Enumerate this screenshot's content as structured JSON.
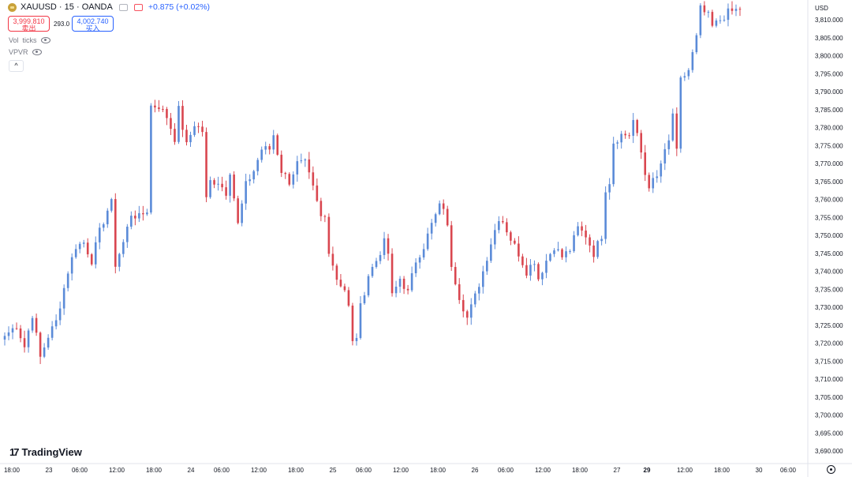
{
  "header": {
    "symbol": "XAUUSD",
    "sep1": "·",
    "interval": "15",
    "sep2": "·",
    "broker": "OANDA",
    "change": "+0.875 (+0.02%)",
    "sell_price": "3,999.810",
    "sell_label": "卖出",
    "spread": "293.0",
    "buy_price": "4,002.740",
    "buy_label": "买入"
  },
  "indicators": [
    {
      "name": "Vol",
      "param": "ticks"
    },
    {
      "name": "VPVR",
      "param": ""
    }
  ],
  "collapse_glyph": "^",
  "logo_text": "TradingView",
  "logo_mark": "17",
  "settings_icon": "gear-icon",
  "colors": {
    "up": "#5b8bd8",
    "down": "#d9464f",
    "up_faint": "#b8c8ee",
    "down_faint": "#efb4ba"
  },
  "chart_data": {
    "type": "candlestick",
    "currency": "USD",
    "y_ticks": [
      "3,810.000",
      "3,805.000",
      "3,800.000",
      "3,795.000",
      "3,790.000",
      "3,785.000",
      "3,780.000",
      "3,775.000",
      "3,770.000",
      "3,765.000",
      "3,760.000",
      "3,755.000",
      "3,750.000",
      "3,745.000",
      "3,740.000",
      "3,735.000",
      "3,730.000",
      "3,725.000",
      "3,720.000",
      "3,715.000",
      "3,710.000",
      "3,705.000",
      "3,700.000",
      "3,695.000",
      "3,690.000"
    ],
    "ylim": [
      3687,
      3813.5
    ],
    "x_ticks": [
      {
        "label": "18:00",
        "bold": false
      },
      {
        "label": "23",
        "bold": false
      },
      {
        "label": "06:00",
        "bold": false
      },
      {
        "label": "12:00",
        "bold": false
      },
      {
        "label": "18:00",
        "bold": false
      },
      {
        "label": "24",
        "bold": false
      },
      {
        "label": "06:00",
        "bold": false
      },
      {
        "label": "12:00",
        "bold": false
      },
      {
        "label": "18:00",
        "bold": false
      },
      {
        "label": "25",
        "bold": false
      },
      {
        "label": "06:00",
        "bold": false
      },
      {
        "label": "12:00",
        "bold": false
      },
      {
        "label": "18:00",
        "bold": false
      },
      {
        "label": "26",
        "bold": false
      },
      {
        "label": "06:00",
        "bold": false
      },
      {
        "label": "12:00",
        "bold": false
      },
      {
        "label": "18:00",
        "bold": false
      },
      {
        "label": "27",
        "bold": false
      },
      {
        "label": "29",
        "bold": true
      },
      {
        "label": "12:00",
        "bold": false
      },
      {
        "label": "18:00",
        "bold": false
      },
      {
        "label": "30",
        "bold": false
      },
      {
        "label": "06:00",
        "bold": false
      }
    ],
    "close_path": [
      [
        0,
        3722
      ],
      [
        3,
        3725
      ],
      [
        5,
        3719
      ],
      [
        7,
        3728
      ],
      [
        9,
        3716
      ],
      [
        11,
        3722
      ],
      [
        13,
        3726
      ],
      [
        16,
        3740
      ],
      [
        18,
        3747
      ],
      [
        20,
        3748
      ],
      [
        22,
        3743
      ],
      [
        24,
        3751
      ],
      [
        26,
        3757
      ],
      [
        27,
        3759
      ],
      [
        28,
        3742
      ],
      [
        30,
        3748
      ],
      [
        32,
        3756
      ],
      [
        34,
        3755
      ],
      [
        36,
        3757
      ],
      [
        37,
        3786
      ],
      [
        39,
        3786
      ],
      [
        41,
        3783
      ],
      [
        43,
        3777
      ],
      [
        44,
        3785
      ],
      [
        46,
        3775
      ],
      [
        48,
        3781
      ],
      [
        50,
        3779
      ],
      [
        51,
        3760
      ],
      [
        52,
        3765
      ],
      [
        54,
        3765
      ],
      [
        56,
        3762
      ],
      [
        57,
        3768
      ],
      [
        59,
        3753
      ],
      [
        61,
        3764
      ],
      [
        63,
        3768
      ],
      [
        65,
        3774
      ],
      [
        67,
        3774
      ],
      [
        68,
        3778
      ],
      [
        70,
        3768
      ],
      [
        72,
        3765
      ],
      [
        74,
        3770
      ],
      [
        76,
        3770
      ],
      [
        78,
        3763
      ],
      [
        80,
        3755
      ],
      [
        81,
        3755
      ],
      [
        82,
        3746
      ],
      [
        84,
        3738
      ],
      [
        86,
        3735
      ],
      [
        87,
        3730
      ],
      [
        88,
        3720
      ],
      [
        89,
        3722
      ],
      [
        90,
        3730
      ],
      [
        92,
        3739
      ],
      [
        94,
        3743
      ],
      [
        96,
        3748
      ],
      [
        97,
        3745
      ],
      [
        98,
        3733
      ],
      [
        100,
        3738
      ],
      [
        102,
        3734
      ],
      [
        104,
        3743
      ],
      [
        106,
        3747
      ],
      [
        108,
        3753
      ],
      [
        110,
        3758
      ],
      [
        111,
        3758
      ],
      [
        112,
        3752
      ],
      [
        113,
        3742
      ],
      [
        115,
        3733
      ],
      [
        117,
        3727
      ],
      [
        119,
        3733
      ],
      [
        121,
        3740
      ],
      [
        123,
        3748
      ],
      [
        125,
        3755
      ],
      [
        126,
        3754
      ],
      [
        128,
        3749
      ],
      [
        130,
        3745
      ],
      [
        132,
        3740
      ],
      [
        134,
        3743
      ],
      [
        135,
        3738
      ],
      [
        137,
        3743
      ],
      [
        139,
        3747
      ],
      [
        141,
        3744
      ],
      [
        143,
        3746
      ],
      [
        145,
        3752
      ],
      [
        147,
        3750
      ],
      [
        149,
        3745
      ],
      [
        151,
        3750
      ],
      [
        152,
        3763
      ],
      [
        153,
        3765
      ],
      [
        154,
        3776
      ],
      [
        156,
        3778
      ],
      [
        158,
        3778
      ],
      [
        159,
        3782
      ],
      [
        161,
        3773
      ],
      [
        162,
        3767
      ],
      [
        163,
        3764
      ],
      [
        165,
        3766
      ],
      [
        166,
        3770
      ],
      [
        168,
        3776
      ],
      [
        169,
        3784
      ],
      [
        170,
        3773
      ],
      [
        171,
        3793
      ],
      [
        173,
        3796
      ],
      [
        175,
        3805
      ],
      [
        176,
        3813
      ],
      [
        178,
        3811
      ],
      [
        179,
        3808
      ],
      [
        181,
        3810
      ],
      [
        183,
        3812
      ],
      [
        186,
        3813
      ]
    ]
  }
}
